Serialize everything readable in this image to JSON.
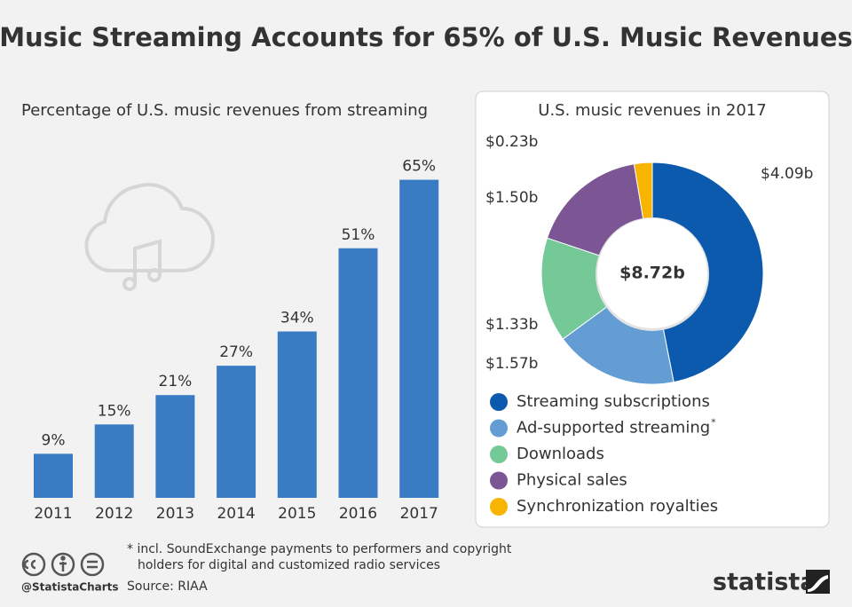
{
  "title": "Music Streaming Accounts for 65% of U.S. Music Revenues",
  "chart_data": [
    {
      "type": "bar",
      "title": "Percentage of U.S. music revenues from streaming",
      "categories": [
        "2011",
        "2012",
        "2013",
        "2014",
        "2015",
        "2016",
        "2017"
      ],
      "values": [
        9,
        15,
        21,
        27,
        34,
        51,
        65
      ],
      "value_labels": [
        "9%",
        "15%",
        "21%",
        "27%",
        "34%",
        "51%",
        "65%"
      ],
      "color": "#3a7cc3",
      "ylim": [
        0,
        70
      ]
    },
    {
      "type": "donut",
      "title": "U.S. music revenues in 2017",
      "center_label": "$8.72b",
      "categories": [
        "Streaming subscriptions",
        "Ad-supported streaming",
        "Downloads",
        "Physical sales",
        "Synchronization royalties"
      ],
      "legend_note": "*",
      "values": [
        4.09,
        1.57,
        1.33,
        1.5,
        0.23
      ],
      "value_labels": [
        "$4.09b",
        "$1.57b",
        "$1.33b",
        "$1.50b",
        "$0.23b"
      ],
      "colors": [
        "#0b5aad",
        "#639dd4",
        "#74c997",
        "#7b5594",
        "#f7b500"
      ]
    }
  ],
  "footnote": [
    "* incl. SoundExchange payments to performers and copyright",
    "holders for digital and customized radio services"
  ],
  "source": "Source: RIAA",
  "credit": "@StatistaCharts",
  "brand": "statista"
}
